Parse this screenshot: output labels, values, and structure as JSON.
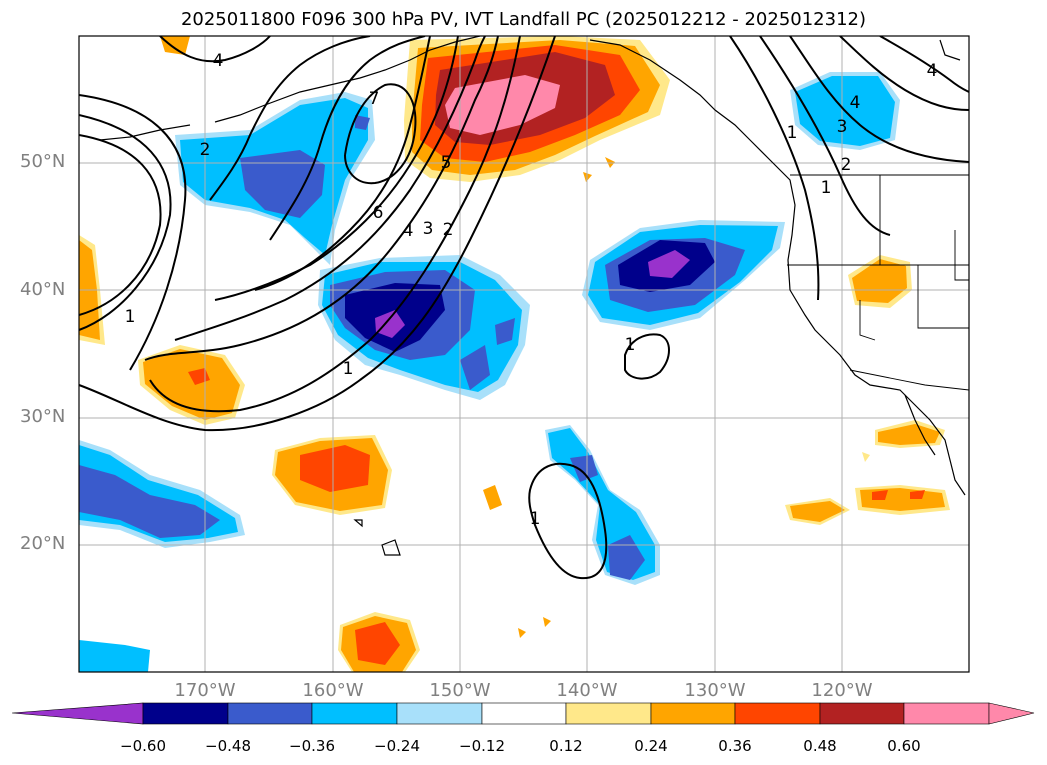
{
  "title": "2025011800 F096 300 hPa PV, IVT Landfall PC (2025012212 - 2025012312)",
  "map": {
    "lat_labels": [
      "20°N",
      "30°N",
      "40°N",
      "50°N"
    ],
    "lon_labels": [
      "170°W",
      "160°W",
      "150°W",
      "140°W",
      "130°W",
      "120°W"
    ],
    "pv_contour_labels": [
      "4",
      "7",
      "2",
      "5",
      "6",
      "4",
      "3",
      "2",
      "1",
      "1",
      "1",
      "1",
      "1",
      "4",
      "3",
      "2",
      "1",
      "4"
    ]
  },
  "colorbar": {
    "ticks": [
      "−0.60",
      "−0.48",
      "−0.36",
      "−0.24",
      "−0.12",
      "0.12",
      "0.24",
      "0.36",
      "0.48",
      "0.60"
    ],
    "colors": [
      "#9932cc",
      "#00008b",
      "#3a5bcc",
      "#00bfff",
      "#a8e0fa",
      "#ffffff",
      "#ffe88a",
      "#ffa500",
      "#ff4500",
      "#b22222",
      "#ff88aa"
    ]
  }
}
